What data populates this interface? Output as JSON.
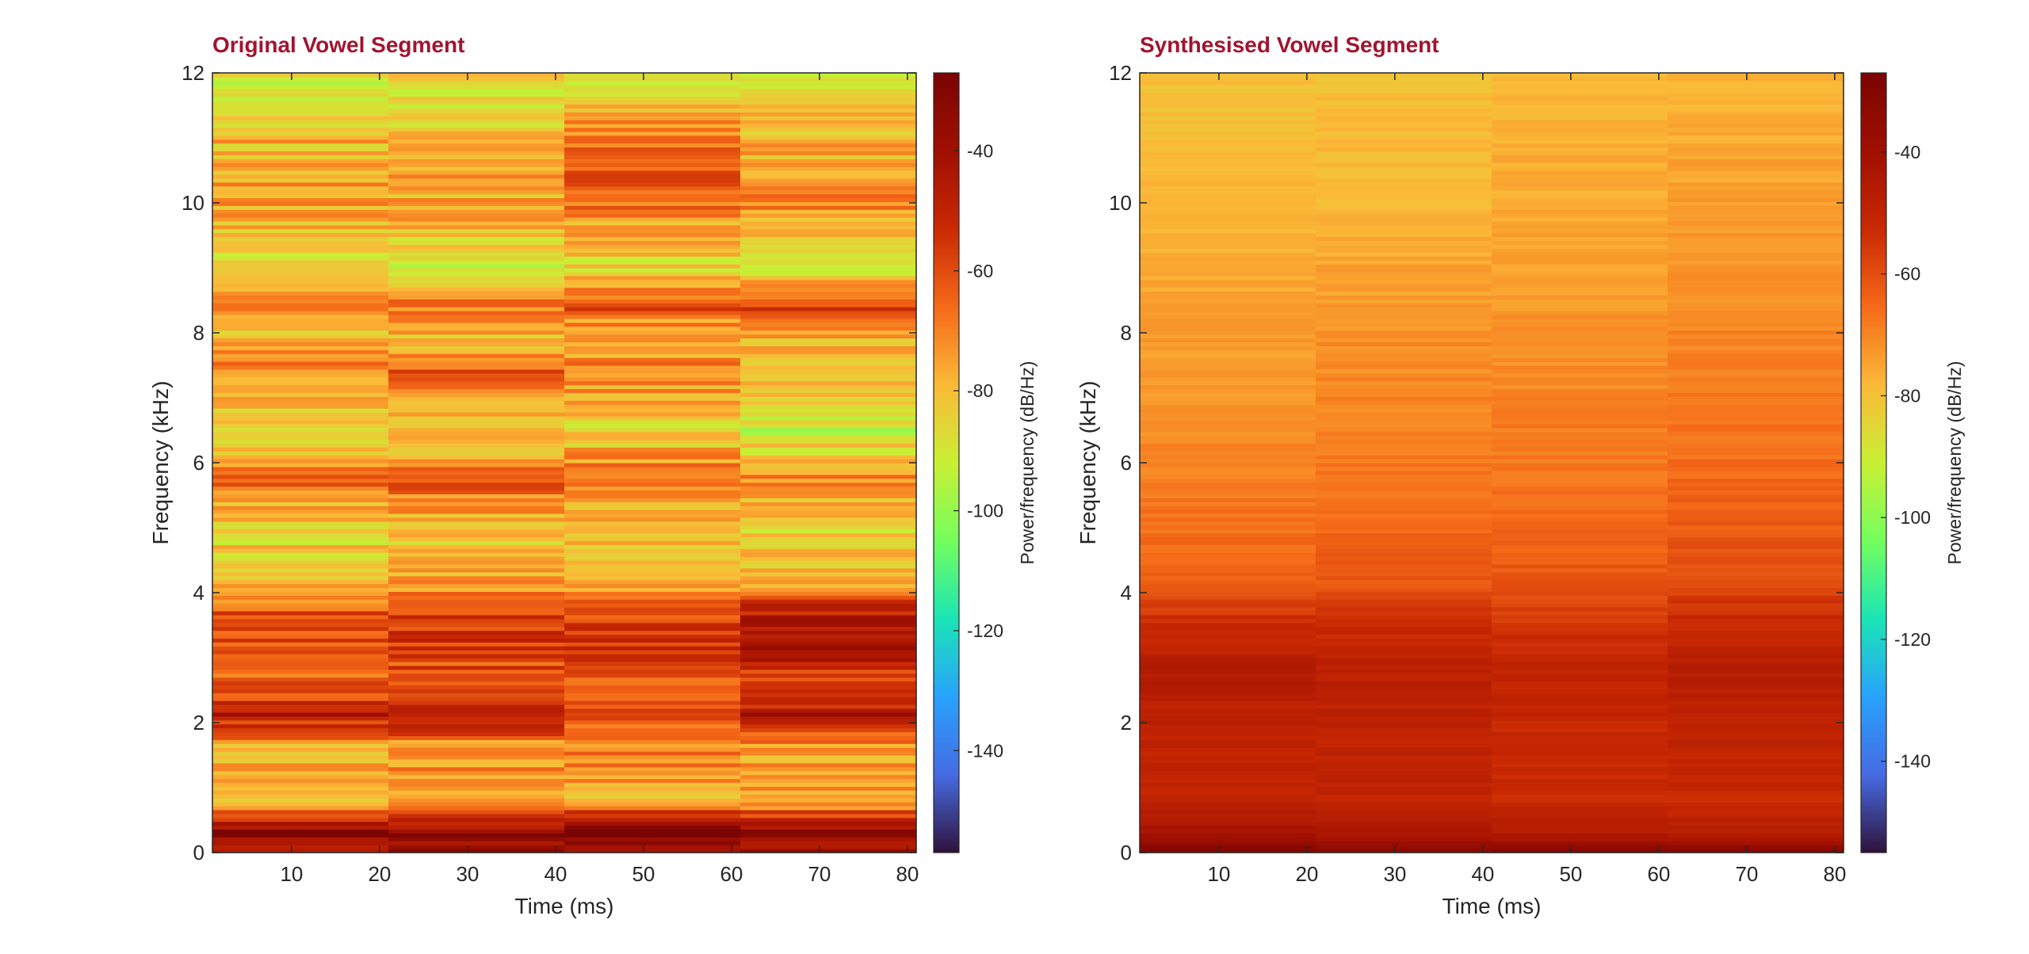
{
  "chart_data": [
    {
      "type": "heatmap",
      "title": "Original Vowel Segment",
      "xlabel": "Time (ms)",
      "ylabel": "Frequency (kHz)",
      "colorbar_label": "Power/frequency (dB/Hz)",
      "xlim": [
        1,
        81
      ],
      "ylim": [
        0,
        12
      ],
      "clim": [
        -157,
        -27
      ],
      "xticks": [
        10,
        20,
        30,
        40,
        50,
        60,
        70,
        80
      ],
      "yticks": [
        0,
        2,
        4,
        6,
        8,
        10,
        12
      ],
      "colorbar_ticks": [
        -40,
        -60,
        -80,
        -100,
        -120,
        -140
      ],
      "colormap": "turbo",
      "time_frames_ms": [
        1,
        21,
        41,
        61,
        81
      ],
      "power_profile_db": [
        {
          "f_khz": 0.0,
          "db": [
            -40,
            -40,
            -40,
            -40
          ]
        },
        {
          "f_khz": 0.1,
          "db": [
            -45,
            -42,
            -40,
            -44
          ]
        },
        {
          "f_khz": 0.3,
          "db": [
            -30,
            -32,
            -31,
            -33
          ]
        },
        {
          "f_khz": 0.5,
          "db": [
            -50,
            -48,
            -46,
            -50
          ]
        },
        {
          "f_khz": 0.8,
          "db": [
            -82,
            -80,
            -78,
            -80
          ]
        },
        {
          "f_khz": 1.2,
          "db": [
            -74,
            -72,
            -70,
            -74
          ]
        },
        {
          "f_khz": 1.6,
          "db": [
            -78,
            -76,
            -72,
            -74
          ]
        },
        {
          "f_khz": 2.0,
          "db": [
            -55,
            -53,
            -60,
            -54
          ]
        },
        {
          "f_khz": 2.15,
          "db": [
            -42,
            -44,
            -56,
            -44
          ]
        },
        {
          "f_khz": 2.4,
          "db": [
            -62,
            -60,
            -60,
            -60
          ]
        },
        {
          "f_khz": 2.8,
          "db": [
            -66,
            -62,
            -60,
            -56
          ]
        },
        {
          "f_khz": 3.1,
          "db": [
            -60,
            -56,
            -56,
            -42
          ]
        },
        {
          "f_khz": 3.5,
          "db": [
            -58,
            -56,
            -58,
            -42
          ]
        },
        {
          "f_khz": 3.9,
          "db": [
            -68,
            -66,
            -66,
            -56
          ]
        },
        {
          "f_khz": 4.2,
          "db": [
            -80,
            -78,
            -80,
            -80
          ]
        },
        {
          "f_khz": 5.0,
          "db": [
            -86,
            -82,
            -84,
            -86
          ]
        },
        {
          "f_khz": 5.7,
          "db": [
            -66,
            -64,
            -64,
            -72
          ]
        },
        {
          "f_khz": 6.5,
          "db": [
            -88,
            -84,
            -86,
            -92
          ]
        },
        {
          "f_khz": 7.4,
          "db": [
            -68,
            -64,
            -70,
            -80
          ]
        },
        {
          "f_khz": 8.0,
          "db": [
            -82,
            -80,
            -80,
            -78
          ]
        },
        {
          "f_khz": 8.4,
          "db": [
            -66,
            -66,
            -62,
            -58
          ]
        },
        {
          "f_khz": 9.0,
          "db": [
            -88,
            -92,
            -86,
            -90
          ]
        },
        {
          "f_khz": 9.5,
          "db": [
            -80,
            -82,
            -80,
            -82
          ]
        },
        {
          "f_khz": 10.0,
          "db": [
            -76,
            -76,
            -66,
            -70
          ]
        },
        {
          "f_khz": 10.7,
          "db": [
            -78,
            -78,
            -64,
            -76
          ]
        },
        {
          "f_khz": 11.3,
          "db": [
            -80,
            -82,
            -76,
            -80
          ]
        },
        {
          "f_khz": 11.8,
          "db": [
            -92,
            -90,
            -88,
            -90
          ]
        },
        {
          "f_khz": 12.0,
          "db": [
            -86,
            -86,
            -86,
            -86
          ]
        }
      ]
    },
    {
      "type": "heatmap",
      "title": "Synthesised Vowel Segment",
      "xlabel": "Time (ms)",
      "ylabel": "Frequency (kHz)",
      "colorbar_label": "Power/frequency (dB/Hz)",
      "xlim": [
        1,
        81
      ],
      "ylim": [
        0,
        12
      ],
      "clim": [
        -155,
        -27
      ],
      "xticks": [
        10,
        20,
        30,
        40,
        50,
        60,
        70,
        80
      ],
      "yticks": [
        0,
        2,
        4,
        6,
        8,
        10,
        12
      ],
      "colorbar_ticks": [
        -40,
        -60,
        -80,
        -100,
        -120,
        -140
      ],
      "colormap": "turbo",
      "time_frames_ms": [
        1,
        21,
        41,
        61,
        81
      ],
      "power_profile_db": [
        {
          "f_khz": 0.0,
          "db": [
            -28,
            -30,
            -30,
            -30
          ]
        },
        {
          "f_khz": 0.2,
          "db": [
            -40,
            -42,
            -44,
            -44
          ]
        },
        {
          "f_khz": 0.8,
          "db": [
            -50,
            -50,
            -52,
            -52
          ]
        },
        {
          "f_khz": 1.6,
          "db": [
            -50,
            -50,
            -52,
            -50
          ]
        },
        {
          "f_khz": 2.8,
          "db": [
            -46,
            -48,
            -50,
            -47
          ]
        },
        {
          "f_khz": 3.6,
          "db": [
            -54,
            -54,
            -56,
            -52
          ]
        },
        {
          "f_khz": 4.2,
          "db": [
            -64,
            -62,
            -62,
            -60
          ]
        },
        {
          "f_khz": 6.0,
          "db": [
            -70,
            -68,
            -68,
            -66
          ]
        },
        {
          "f_khz": 8.0,
          "db": [
            -74,
            -72,
            -72,
            -70
          ]
        },
        {
          "f_khz": 10.0,
          "db": [
            -78,
            -78,
            -76,
            -74
          ]
        },
        {
          "f_khz": 12.0,
          "db": [
            -80,
            -80,
            -78,
            -78
          ]
        }
      ]
    }
  ]
}
